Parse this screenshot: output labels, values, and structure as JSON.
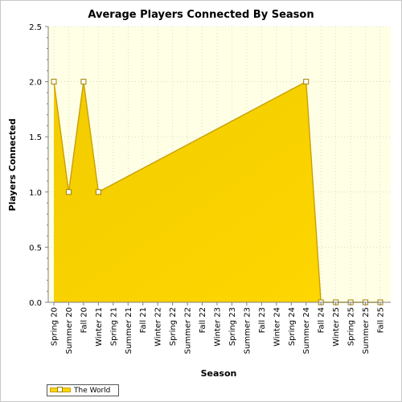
{
  "chart_data": {
    "type": "area",
    "title": "Average Players Connected By Season",
    "xlabel": "Season",
    "ylabel": "Players Connected",
    "categories": [
      "Spring 20",
      "Summer 20",
      "Fall 20",
      "Winter 21",
      "Spring 21",
      "Summer 21",
      "Fall 21",
      "Winter 22",
      "Spring 22",
      "Summer 22",
      "Fall 22",
      "Winter 23",
      "Spring 23",
      "Summer 23",
      "Fall 23",
      "Winter 24",
      "Spring 24",
      "Summer 24",
      "Fall 24",
      "Winter 25",
      "Spring 25",
      "Summer 25",
      "Fall 25"
    ],
    "series": [
      {
        "name": "The World",
        "x": [
          "Spring 20",
          "Summer 20",
          "Fall 20",
          "Winter 21",
          "Summer 24",
          "Fall 24",
          "Winter 25",
          "Spring 25",
          "Summer 25",
          "Fall 25"
        ],
        "values": [
          2.0,
          1.0,
          2.0,
          1.0,
          2.0,
          0.0,
          0.0,
          0.0,
          0.0,
          0.0
        ],
        "color": "#ffd700"
      }
    ],
    "ylim": [
      0.0,
      2.5
    ],
    "yticks": [
      "0.0",
      "0.5",
      "1.0",
      "1.5",
      "2.0",
      "2.5"
    ],
    "grid": true,
    "legend_position": "bottom-left",
    "plot_background": "#ffffe6",
    "fill_color": "#ffd700",
    "line_color": "#c8a000"
  }
}
